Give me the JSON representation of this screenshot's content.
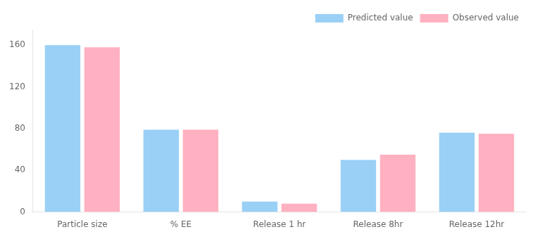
{
  "chart_data": {
    "type": "bar",
    "categories": [
      "Particle size",
      "% EE",
      "Release 1 hr",
      "Release 8hr",
      "Release 12hr"
    ],
    "series": [
      {
        "name": "Predicted value",
        "values": [
          160,
          79,
          10,
          50,
          76
        ]
      },
      {
        "name": "Observed value",
        "values": [
          158,
          79,
          8,
          55,
          75
        ]
      }
    ],
    "ylim": [
      0,
      175
    ],
    "yticks": [
      0,
      40,
      80,
      120,
      160
    ],
    "grid": false,
    "legend": "upper right"
  }
}
